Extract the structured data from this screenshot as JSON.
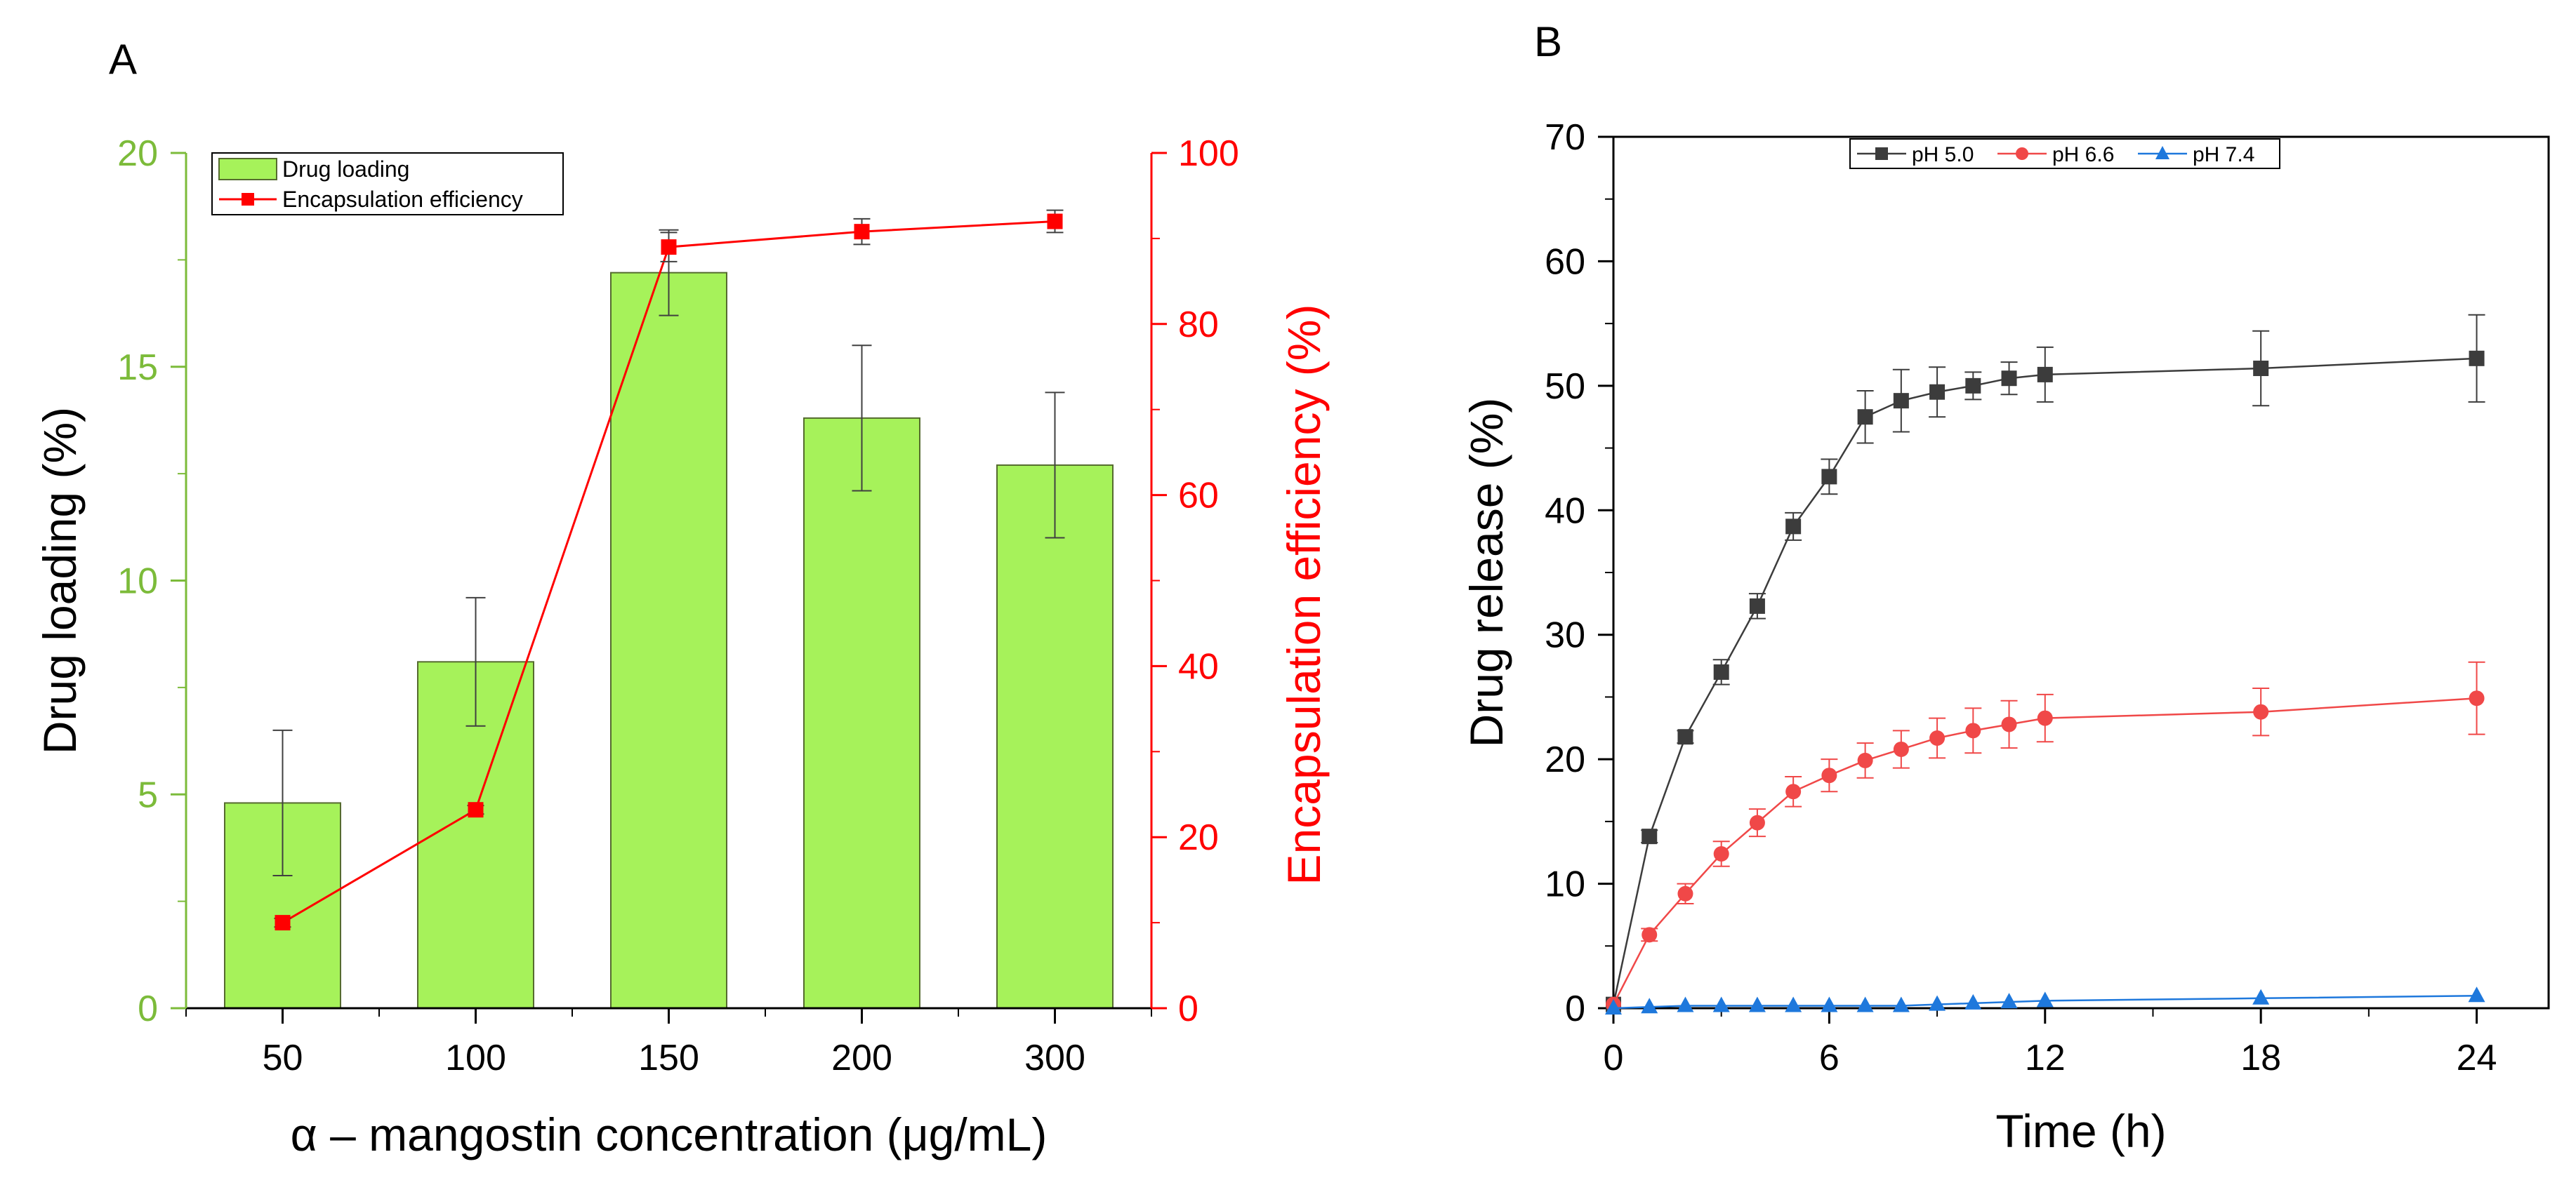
{
  "colors": {
    "green_axis": "#7cbb3a",
    "bar_fill": "#a6f25a",
    "bar_stroke": "#556b2f",
    "red": "#ff0000",
    "ph50": "#3c3c3c",
    "ph66": "#f04848",
    "ph74": "#1e78dc",
    "black": "#000000"
  },
  "chart_data": [
    {
      "type": "bar",
      "panel_label": "A",
      "title": "",
      "xlabel": "α – mangostin concentration (μg/mL)",
      "ylabel": "Drug loading (%)",
      "ylabel_right": "Encapsulation efficiency (%)",
      "categories": [
        "50",
        "100",
        "150",
        "200",
        "300"
      ],
      "ylim": [
        0,
        20
      ],
      "yticks": [
        0,
        5,
        10,
        15,
        20
      ],
      "ylim_right": [
        0,
        100
      ],
      "yticks_right": [
        0,
        20,
        40,
        60,
        80,
        100
      ],
      "legend_position": "top-left",
      "series": [
        {
          "name": "Drug loading",
          "kind": "bar",
          "axis": "left",
          "values": [
            4.8,
            8.1,
            17.2,
            13.8,
            12.7
          ],
          "errors": [
            1.7,
            1.5,
            1.0,
            1.7,
            1.7
          ]
        },
        {
          "name": "Encapsulation efficiency",
          "kind": "line",
          "axis": "right",
          "values": [
            10.0,
            23.2,
            89.0,
            90.8,
            92.0
          ],
          "errors": [
            0.5,
            0.5,
            1.7,
            1.5,
            1.3
          ]
        }
      ]
    },
    {
      "type": "line",
      "panel_label": "B",
      "title": "",
      "xlabel": "Time (h)",
      "ylabel": "Drug release (%)",
      "xlim": [
        0,
        26
      ],
      "xticks": [
        0,
        6,
        12,
        18,
        24
      ],
      "ylim": [
        0,
        70
      ],
      "yticks": [
        0,
        10,
        20,
        30,
        40,
        50,
        60,
        70
      ],
      "legend_position": "top-center",
      "x": [
        0,
        1,
        2,
        3,
        4,
        5,
        6,
        7,
        8,
        9,
        10,
        11,
        12,
        18,
        24
      ],
      "series": [
        {
          "name": "pH 5.0",
          "marker": "square",
          "values": [
            0.3,
            13.8,
            21.8,
            27.0,
            32.3,
            38.7,
            42.7,
            47.5,
            48.8,
            49.5,
            50.0,
            50.6,
            50.9,
            51.4,
            52.2
          ],
          "errors": [
            0,
            0.5,
            0.5,
            1.0,
            1.0,
            1.1,
            1.4,
            2.1,
            2.5,
            2.0,
            1.1,
            1.3,
            2.2,
            3.0,
            3.5
          ]
        },
        {
          "name": "pH 6.6",
          "marker": "circle",
          "values": [
            0.3,
            5.9,
            9.2,
            12.4,
            14.9,
            17.4,
            18.7,
            19.9,
            20.8,
            21.7,
            22.3,
            22.8,
            23.3,
            23.8,
            24.9
          ],
          "errors": [
            0,
            0.5,
            0.8,
            1.0,
            1.1,
            1.2,
            1.3,
            1.4,
            1.5,
            1.6,
            1.8,
            1.9,
            1.9,
            1.9,
            2.9
          ]
        },
        {
          "name": "pH 7.4",
          "marker": "triangle",
          "values": [
            0.0,
            0.1,
            0.2,
            0.2,
            0.2,
            0.2,
            0.2,
            0.2,
            0.2,
            0.3,
            0.4,
            0.5,
            0.6,
            0.8,
            1.0
          ],
          "errors": [
            0,
            0,
            0,
            0,
            0,
            0,
            0,
            0,
            0,
            0,
            0,
            0,
            0,
            0,
            0
          ]
        }
      ]
    }
  ]
}
